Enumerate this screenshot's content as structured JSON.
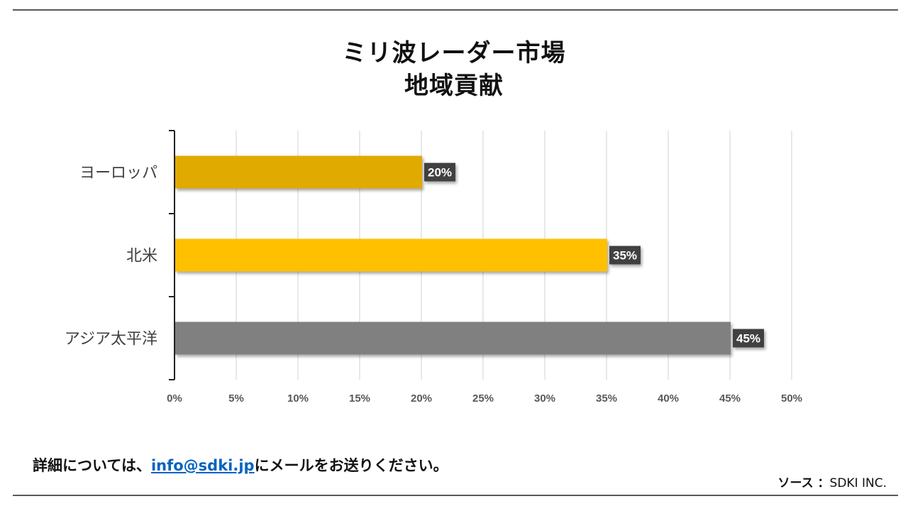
{
  "chart_data": {
    "type": "bar",
    "orientation": "horizontal",
    "title": "ミリ波レーダー市場",
    "subtitle": "地域貢献",
    "categories": [
      "ヨーロッパ",
      "北米",
      "アジア太平洋"
    ],
    "values": [
      20,
      35,
      45
    ],
    "value_labels": [
      "20%",
      "35%",
      "45%"
    ],
    "colors": [
      "#e1aa00",
      "#ffc000",
      "#808080"
    ],
    "xlim": [
      0,
      50
    ],
    "x_ticks": [
      "0%",
      "5%",
      "10%",
      "15%",
      "20%",
      "25%",
      "30%",
      "35%",
      "40%",
      "45%",
      "50%"
    ],
    "grid": "vertical"
  },
  "footer": {
    "prefix": "詳細については、",
    "email": "info@sdki.jp",
    "suffix": "にメールをお送りください。"
  },
  "source": {
    "label": "ソース",
    "separator": " ：",
    "value": "SDKI INC."
  }
}
